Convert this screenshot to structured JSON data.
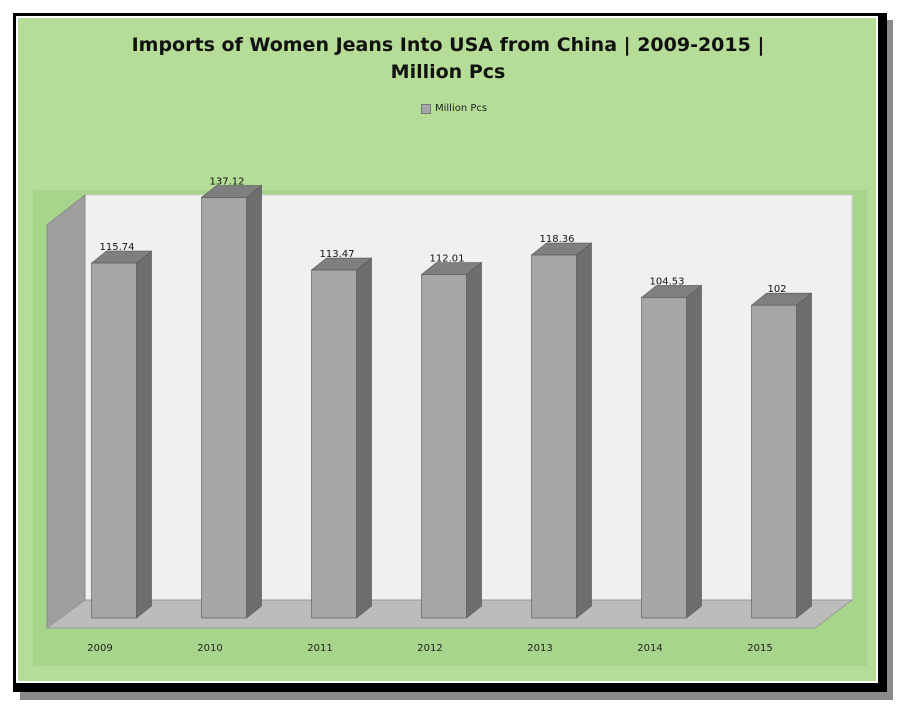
{
  "chart_data": {
    "type": "bar",
    "title": "Imports of Women Jeans Into USA from China  | 2009-2015  | Million Pcs",
    "categories": [
      "2009",
      "2010",
      "2011",
      "2012",
      "2013",
      "2014",
      "2015"
    ],
    "series": [
      {
        "name": "Million Pcs",
        "values": [
          115.74,
          137.12,
          113.47,
          112.01,
          118.36,
          104.53,
          102
        ]
      }
    ],
    "data_labels": [
      "115.74",
      "137.12",
      "113.47",
      "112.01",
      "118.36",
      "104.53",
      "102"
    ],
    "ylim": [
      0,
      150
    ],
    "grid": false,
    "legend_position": "top",
    "style": "3d-column"
  },
  "colors": {
    "chart_background": "#b5dd98",
    "plot_background": "#a8d58c",
    "back_wall": "#f0f0f0",
    "side_wall": "#9f9f9f",
    "floor": "#bcbcbc",
    "bar_front": "#a6a6a6",
    "bar_side": "#6e6e6e",
    "bar_top": "#7f7f7f"
  }
}
